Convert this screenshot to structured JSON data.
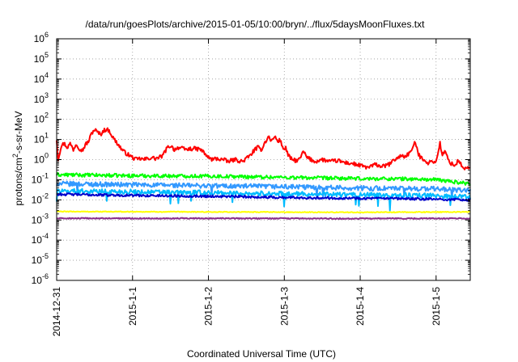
{
  "chart_data": {
    "type": "line",
    "title": "/data/run/goesPlots/archive/2015-01-05/10:00/bryn/../flux/5daysMoonFluxes.txt",
    "xlabel": "Coordinated Universal Time (UTC)",
    "ylabel": "protons/cm²-s-sr-MeV",
    "ylabel_parts": {
      "base": "protons/cm",
      "sup": "2",
      "rest": "-s-sr-MeV"
    },
    "yscale": "log",
    "ylim_exp": [
      -6,
      6
    ],
    "y_tick_base": "10",
    "y_tick_exponents": [
      "-6",
      "-5",
      "-4",
      "-3",
      "-2",
      "-1",
      "0",
      "1",
      "2",
      "3",
      "4",
      "5",
      "6"
    ],
    "x_unit": "days since 2014-12-31 00:00",
    "xlim": [
      0,
      5.45
    ],
    "x_tick_labels": [
      "2014-12-31",
      "2015-1-1",
      "2015-1-2",
      "2015-1-3",
      "2015-1-4",
      "2015-1-5"
    ],
    "x_tick_values": [
      0,
      1,
      2,
      3,
      4,
      5
    ],
    "grid": true,
    "grid_style": "dotted",
    "legend": "none",
    "series": [
      {
        "color": "#ff0000",
        "width": 2.0,
        "anchors": [
          [
            0.0,
            1.0
          ],
          [
            0.02,
            0.0
          ],
          [
            0.06,
            0.7
          ],
          [
            0.1,
            0.8
          ],
          [
            0.14,
            0.6
          ],
          [
            0.18,
            0.8
          ],
          [
            0.22,
            0.5
          ],
          [
            0.26,
            0.8
          ],
          [
            0.3,
            0.55
          ],
          [
            0.34,
            0.45
          ],
          [
            0.38,
            0.75
          ],
          [
            0.42,
            0.9
          ],
          [
            0.46,
            1.3
          ],
          [
            0.5,
            1.5
          ],
          [
            0.54,
            1.35
          ],
          [
            0.58,
            1.25
          ],
          [
            0.62,
            1.45
          ],
          [
            0.66,
            1.5
          ],
          [
            0.7,
            1.4
          ],
          [
            0.74,
            1.1
          ],
          [
            0.78,
            0.9
          ],
          [
            0.82,
            0.7
          ],
          [
            0.86,
            0.5
          ],
          [
            0.9,
            0.35
          ],
          [
            0.94,
            0.25
          ],
          [
            1.0,
            0.1
          ],
          [
            1.05,
            0.0
          ],
          [
            1.1,
            0.05
          ],
          [
            1.15,
            0.0
          ],
          [
            1.2,
            0.05
          ],
          [
            1.25,
            0.1
          ],
          [
            1.3,
            0.05
          ],
          [
            1.35,
            0.1
          ],
          [
            1.4,
            0.2
          ],
          [
            1.45,
            0.55
          ],
          [
            1.5,
            0.7
          ],
          [
            1.55,
            0.5
          ],
          [
            1.6,
            0.6
          ],
          [
            1.65,
            0.55
          ],
          [
            1.7,
            0.5
          ],
          [
            1.8,
            0.55
          ],
          [
            1.9,
            0.5
          ],
          [
            1.95,
            0.3
          ],
          [
            2.0,
            0.1
          ],
          [
            2.05,
            0.0
          ],
          [
            2.1,
            0.05
          ],
          [
            2.2,
            0.0
          ],
          [
            2.25,
            -0.1
          ],
          [
            2.35,
            0.0
          ],
          [
            2.45,
            -0.1
          ],
          [
            2.48,
            0.0
          ],
          [
            2.55,
            0.2
          ],
          [
            2.6,
            0.45
          ],
          [
            2.65,
            0.6
          ],
          [
            2.7,
            0.5
          ],
          [
            2.75,
            0.9
          ],
          [
            2.8,
            1.15
          ],
          [
            2.83,
            0.9
          ],
          [
            2.87,
            1.15
          ],
          [
            2.92,
            0.9
          ],
          [
            2.95,
            1.0
          ],
          [
            2.98,
            0.5
          ],
          [
            3.02,
            0.6
          ],
          [
            3.05,
            0.2
          ],
          [
            3.1,
            0.0
          ],
          [
            3.15,
            -0.05
          ],
          [
            3.2,
            0.0
          ],
          [
            3.25,
            0.4
          ],
          [
            3.3,
            0.1
          ],
          [
            3.35,
            0.0
          ],
          [
            3.4,
            -0.1
          ],
          [
            3.5,
            0.0
          ],
          [
            3.6,
            -0.1
          ],
          [
            3.7,
            -0.05
          ],
          [
            3.8,
            -0.15
          ],
          [
            3.9,
            -0.2
          ],
          [
            4.0,
            -0.3
          ],
          [
            4.1,
            -0.4
          ],
          [
            4.2,
            -0.25
          ],
          [
            4.3,
            -0.35
          ],
          [
            4.4,
            -0.2
          ],
          [
            4.45,
            0.0
          ],
          [
            4.5,
            0.1
          ],
          [
            4.55,
            0.2
          ],
          [
            4.6,
            0.15
          ],
          [
            4.65,
            0.35
          ],
          [
            4.7,
            0.55
          ],
          [
            4.72,
            1.0
          ],
          [
            4.76,
            0.3
          ],
          [
            4.8,
            0.1
          ],
          [
            4.85,
            0.0
          ],
          [
            4.9,
            -0.2
          ],
          [
            4.95,
            -0.05
          ],
          [
            5.0,
            -0.15
          ],
          [
            5.05,
            0.85
          ],
          [
            5.08,
            0.2
          ],
          [
            5.12,
            0.4
          ],
          [
            5.16,
            0.0
          ],
          [
            5.2,
            -0.2
          ],
          [
            5.25,
            -0.3
          ],
          [
            5.3,
            0.0
          ],
          [
            5.35,
            -0.45
          ],
          [
            5.4,
            -0.4
          ],
          [
            5.45,
            -0.45
          ]
        ],
        "noise": 0.1,
        "dips": 0
      },
      {
        "color": "#00ff00",
        "width": 2.0,
        "anchors": [
          [
            0.0,
            -0.75
          ],
          [
            1.0,
            -0.8
          ],
          [
            2.0,
            -0.82
          ],
          [
            3.0,
            -0.88
          ],
          [
            4.0,
            -0.95
          ],
          [
            4.5,
            -0.95
          ],
          [
            5.0,
            -1.0
          ],
          [
            5.45,
            -1.2
          ]
        ],
        "noise": 0.09,
        "dips": 0
      },
      {
        "color": "#3399ff",
        "width": 2.0,
        "anchors": [
          [
            0.0,
            -1.2
          ],
          [
            1.0,
            -1.25
          ],
          [
            2.0,
            -1.3
          ],
          [
            3.0,
            -1.35
          ],
          [
            4.0,
            -1.42
          ],
          [
            5.0,
            -1.45
          ],
          [
            5.45,
            -1.55
          ]
        ],
        "noise": 0.12,
        "dips": 6
      },
      {
        "color": "#00bbff",
        "width": 2.0,
        "anchors": [
          [
            0.0,
            -1.55
          ],
          [
            1.0,
            -1.6
          ],
          [
            2.0,
            -1.65
          ],
          [
            3.0,
            -1.7
          ],
          [
            4.0,
            -1.75
          ],
          [
            5.0,
            -1.8
          ],
          [
            5.45,
            -1.85
          ]
        ],
        "noise": 0.12,
        "dips": 14
      },
      {
        "color": "#0000cc",
        "width": 2.0,
        "anchors": [
          [
            0.0,
            -1.72
          ],
          [
            1.0,
            -1.78
          ],
          [
            2.0,
            -1.82
          ],
          [
            3.0,
            -1.88
          ],
          [
            4.0,
            -1.92
          ],
          [
            5.0,
            -1.97
          ],
          [
            5.45,
            -2.0
          ]
        ],
        "noise": 0.06,
        "dips": 0
      },
      {
        "color": "#ffff00",
        "width": 2.0,
        "anchors": [
          [
            0.0,
            -2.58
          ],
          [
            2.0,
            -2.6
          ],
          [
            4.0,
            -2.62
          ],
          [
            5.45,
            -2.6
          ]
        ],
        "noise": 0.02,
        "dips": 0
      },
      {
        "color": "#8b2f8b",
        "width": 2.0,
        "anchors": [
          [
            0.0,
            -2.92
          ],
          [
            2.0,
            -2.92
          ],
          [
            4.0,
            -2.93
          ],
          [
            5.45,
            -2.92
          ]
        ],
        "noise": 0.025,
        "dips": 0
      }
    ]
  }
}
